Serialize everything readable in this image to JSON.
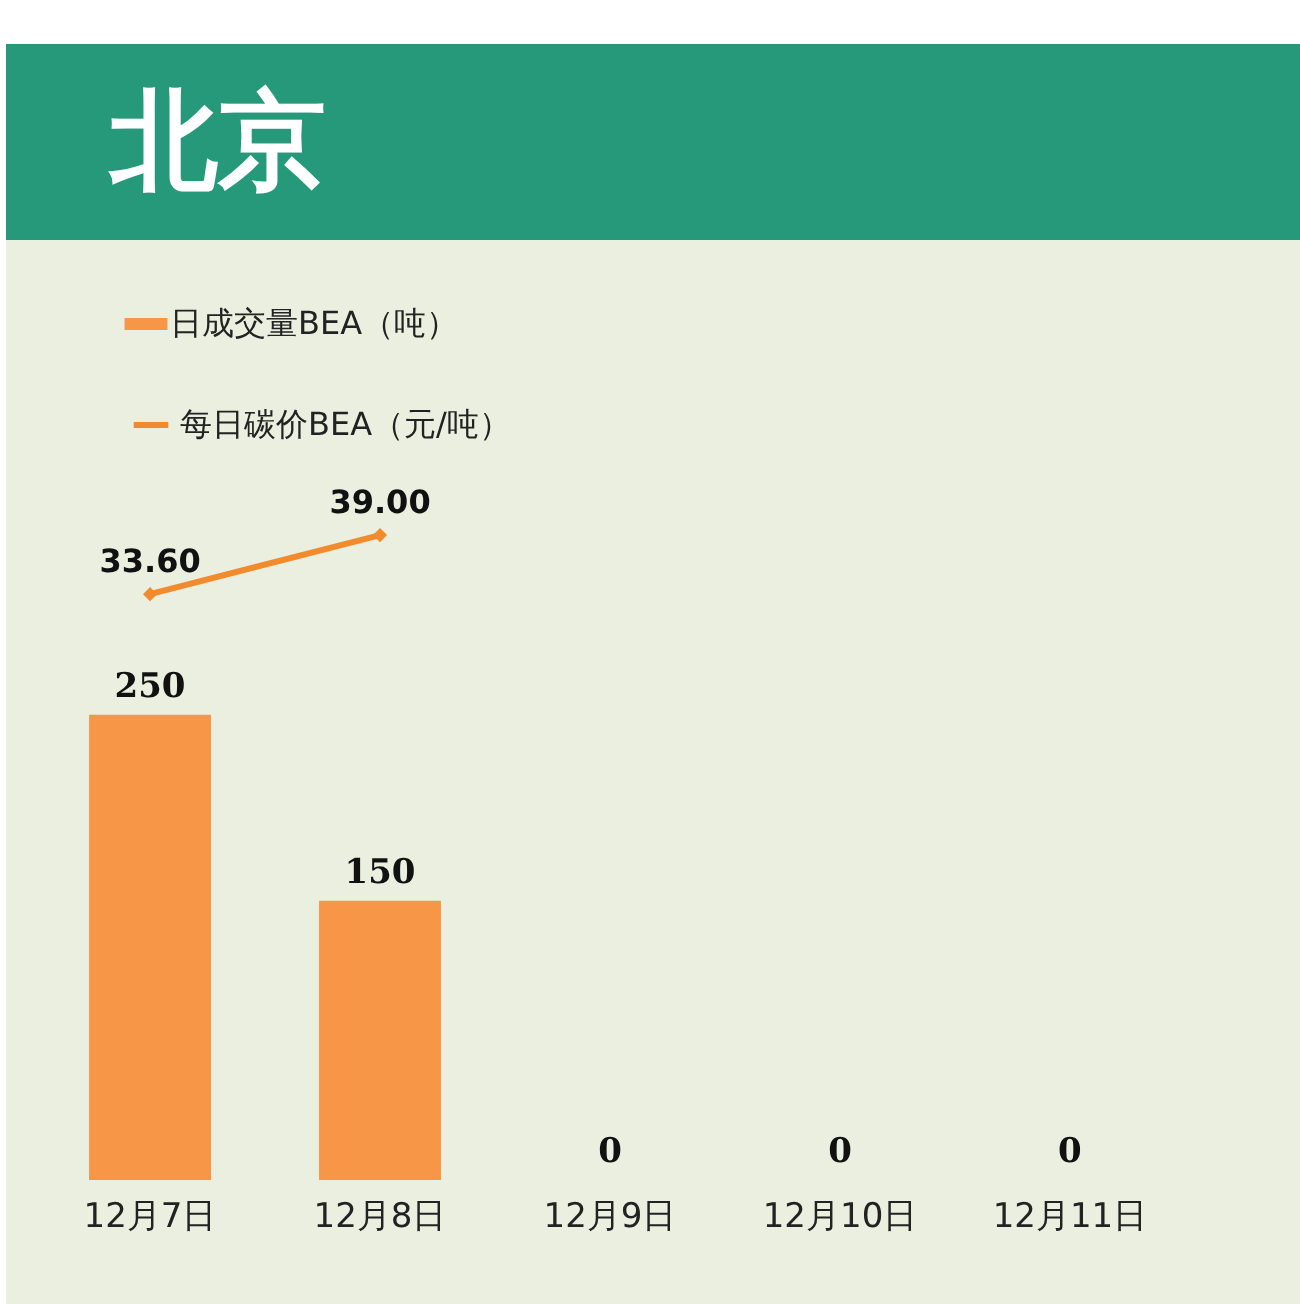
{
  "chart_data": {
    "type": "bar",
    "title": "北京",
    "categories": [
      "12月7日",
      "12月8日",
      "12月9日",
      "12月10日",
      "12月11日"
    ],
    "series": [
      {
        "name": "日成交量BEA（吨）",
        "color": "#f79646",
        "values": [
          250,
          150,
          0,
          0,
          0
        ],
        "value_labels": [
          "250",
          "150",
          "0",
          "0",
          "0"
        ]
      },
      {
        "name": "每日碳价BEA（元/吨）",
        "type": "line",
        "axis": "y2",
        "color": "#f28a2e",
        "marker": "diamond",
        "values": [
          33.6,
          39.0,
          null,
          null,
          null
        ],
        "value_labels": [
          "33.60",
          "39.00",
          null,
          null,
          null
        ]
      }
    ],
    "ylim": [
      0,
      505
    ],
    "y2lim": [
      -20,
      66
    ],
    "legend": "top left",
    "grid": false
  }
}
